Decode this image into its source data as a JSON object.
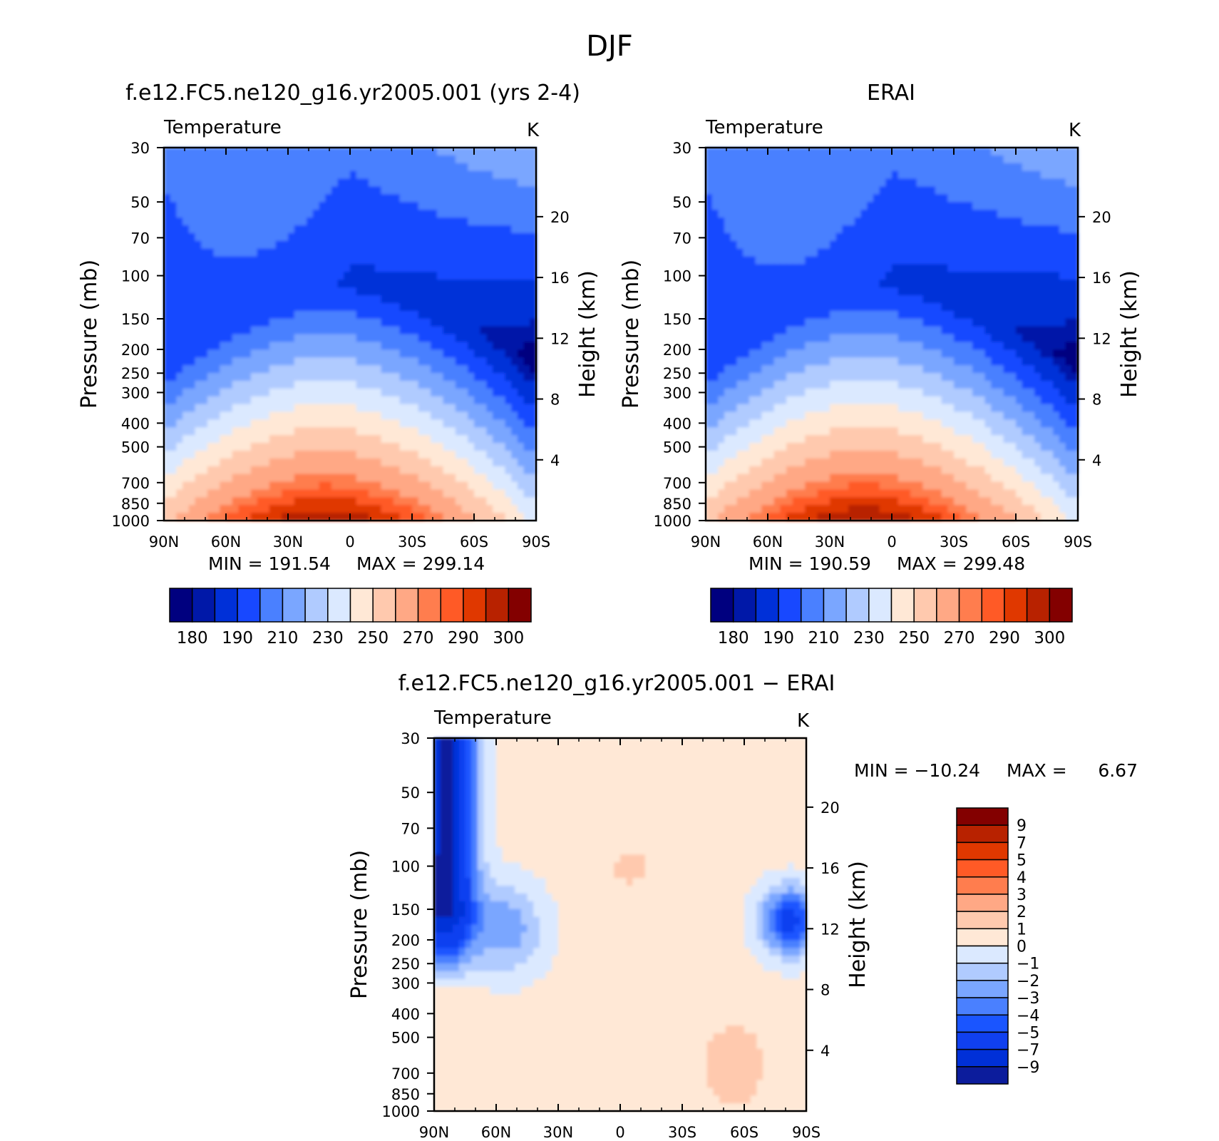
{
  "figure_title": "DJF",
  "colors": {
    "cold_scale": [
      "#00007f",
      "#0018a8",
      "#0030d8",
      "#1848ff",
      "#4a80ff",
      "#7aa6ff",
      "#b0cbff",
      "#dbe9ff"
    ],
    "warm_scale": [
      "#ffe8d6",
      "#ffc9ae",
      "#ffa885",
      "#ff7d4e",
      "#ff5a26",
      "#e03800",
      "#b82200",
      "#830000"
    ],
    "diff_scale": [
      "#0c1c9c",
      "#0030d8",
      "#1040f0",
      "#1a55ff",
      "#4a80ff",
      "#7aa6ff",
      "#b0cbff",
      "#dbe9ff",
      "#ffe8d6",
      "#ffc9ae",
      "#ffa885",
      "#ff7d4e",
      "#ff5a26",
      "#e03800",
      "#b82200",
      "#830000"
    ]
  },
  "chart_data": [
    {
      "type": "contour",
      "case_title": "f.e12.FC5.ne120_g16.yr2005.001 (yrs 2-4)",
      "variable": "Temperature",
      "units": "K",
      "ylabel": "Pressure (mb)",
      "ylabel_right": "Height (km)",
      "x_ticks": [
        "90N",
        "60N",
        "30N",
        "0",
        "30S",
        "60S",
        "90S"
      ],
      "y_ticks": [
        "30",
        "50",
        "70",
        "100",
        "150",
        "200",
        "250",
        "300",
        "400",
        "500",
        "700",
        "850",
        "1000"
      ],
      "y_right_ticks": [
        "20",
        "16",
        "12",
        "8",
        "4"
      ],
      "min_label": "MIN = 191.54",
      "max_label": "MAX = 299.14",
      "min": 191.54,
      "max": 299.14,
      "colorbar_labels": [
        "180",
        "190",
        "210",
        "230",
        "250",
        "270",
        "290",
        "300"
      ],
      "contour_levels": [
        180,
        185,
        190,
        200,
        210,
        220,
        230,
        240,
        250,
        260,
        270,
        280,
        285,
        290,
        295,
        300
      ]
    },
    {
      "type": "contour",
      "case_title": "ERAI",
      "variable": "Temperature",
      "units": "K",
      "ylabel": "Pressure (mb)",
      "ylabel_right": "Height (km)",
      "x_ticks": [
        "90N",
        "60N",
        "30N",
        "0",
        "30S",
        "60S",
        "90S"
      ],
      "y_ticks": [
        "30",
        "50",
        "70",
        "100",
        "150",
        "200",
        "250",
        "300",
        "400",
        "500",
        "700",
        "850",
        "1000"
      ],
      "y_right_ticks": [
        "20",
        "16",
        "12",
        "8",
        "4"
      ],
      "min_label": "MIN = 190.59",
      "max_label": "MAX = 299.48",
      "min": 190.59,
      "max": 299.48,
      "colorbar_labels": [
        "180",
        "190",
        "210",
        "230",
        "250",
        "270",
        "290",
        "300"
      ],
      "contour_levels": [
        180,
        185,
        190,
        200,
        210,
        220,
        230,
        240,
        250,
        260,
        270,
        280,
        285,
        290,
        295,
        300
      ]
    },
    {
      "type": "contour",
      "case_title": "f.e12.FC5.ne120_g16.yr2005.001 − ERAI",
      "variable": "Temperature",
      "units": "K",
      "ylabel": "Pressure (mb)",
      "ylabel_right": "Height (km)",
      "x_ticks": [
        "90N",
        "60N",
        "30N",
        "0",
        "30S",
        "60S",
        "90S"
      ],
      "y_ticks": [
        "30",
        "50",
        "70",
        "100",
        "150",
        "200",
        "250",
        "300",
        "400",
        "500",
        "700",
        "850",
        "1000"
      ],
      "y_right_ticks": [
        "20",
        "16",
        "12",
        "8",
        "4"
      ],
      "min_label": "MIN = −10.24",
      "max_label": "MAX =",
      "max_value": "6.67",
      "min": -10.24,
      "max": 6.67,
      "colorbar_labels": [
        "9",
        "7",
        "5",
        "4",
        "3",
        "2",
        "1",
        "0",
        "−1",
        "−2",
        "−3",
        "−4",
        "−5",
        "−7",
        "−9"
      ]
    }
  ]
}
